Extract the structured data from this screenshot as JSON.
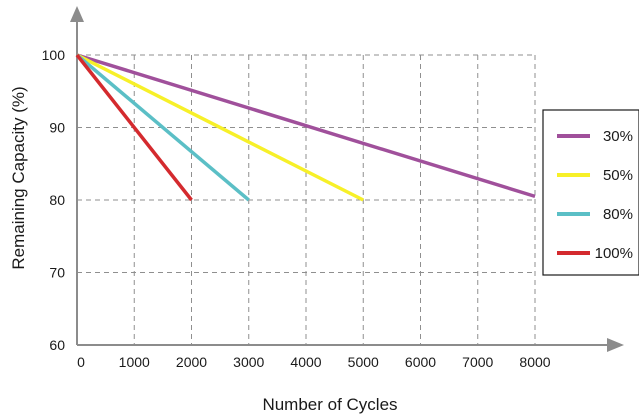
{
  "chart_data": {
    "type": "line",
    "title": "",
    "xlabel": "Number of Cycles",
    "ylabel": "Remaining Capacity (%)",
    "xlim": [
      0,
      8000
    ],
    "ylim": [
      60,
      100
    ],
    "xticks": [
      0,
      1000,
      2000,
      3000,
      4000,
      5000,
      6000,
      7000,
      8000
    ],
    "yticks": [
      60,
      70,
      80,
      90,
      100
    ],
    "x_tick_labels": [
      "0",
      "1000",
      "2000",
      "3000",
      "4000",
      "5000",
      "6000",
      "7000",
      "8000"
    ],
    "y_tick_labels": [
      "60",
      "70",
      "80",
      "90",
      "100"
    ],
    "grid": true,
    "grid_style": "dashed",
    "legend_position": "right",
    "series": [
      {
        "name": "30%",
        "color": "#a0509b",
        "x": [
          0,
          8000
        ],
        "y": [
          100,
          80.5
        ]
      },
      {
        "name": "50%",
        "color": "#f7f028",
        "x": [
          0,
          5000
        ],
        "y": [
          100,
          80
        ]
      },
      {
        "name": "80%",
        "color": "#5bbfc6",
        "x": [
          0,
          3000
        ],
        "y": [
          100,
          80
        ]
      },
      {
        "name": "100%",
        "color": "#d42a2e",
        "x": [
          0,
          2000
        ],
        "y": [
          100,
          80
        ]
      }
    ]
  }
}
